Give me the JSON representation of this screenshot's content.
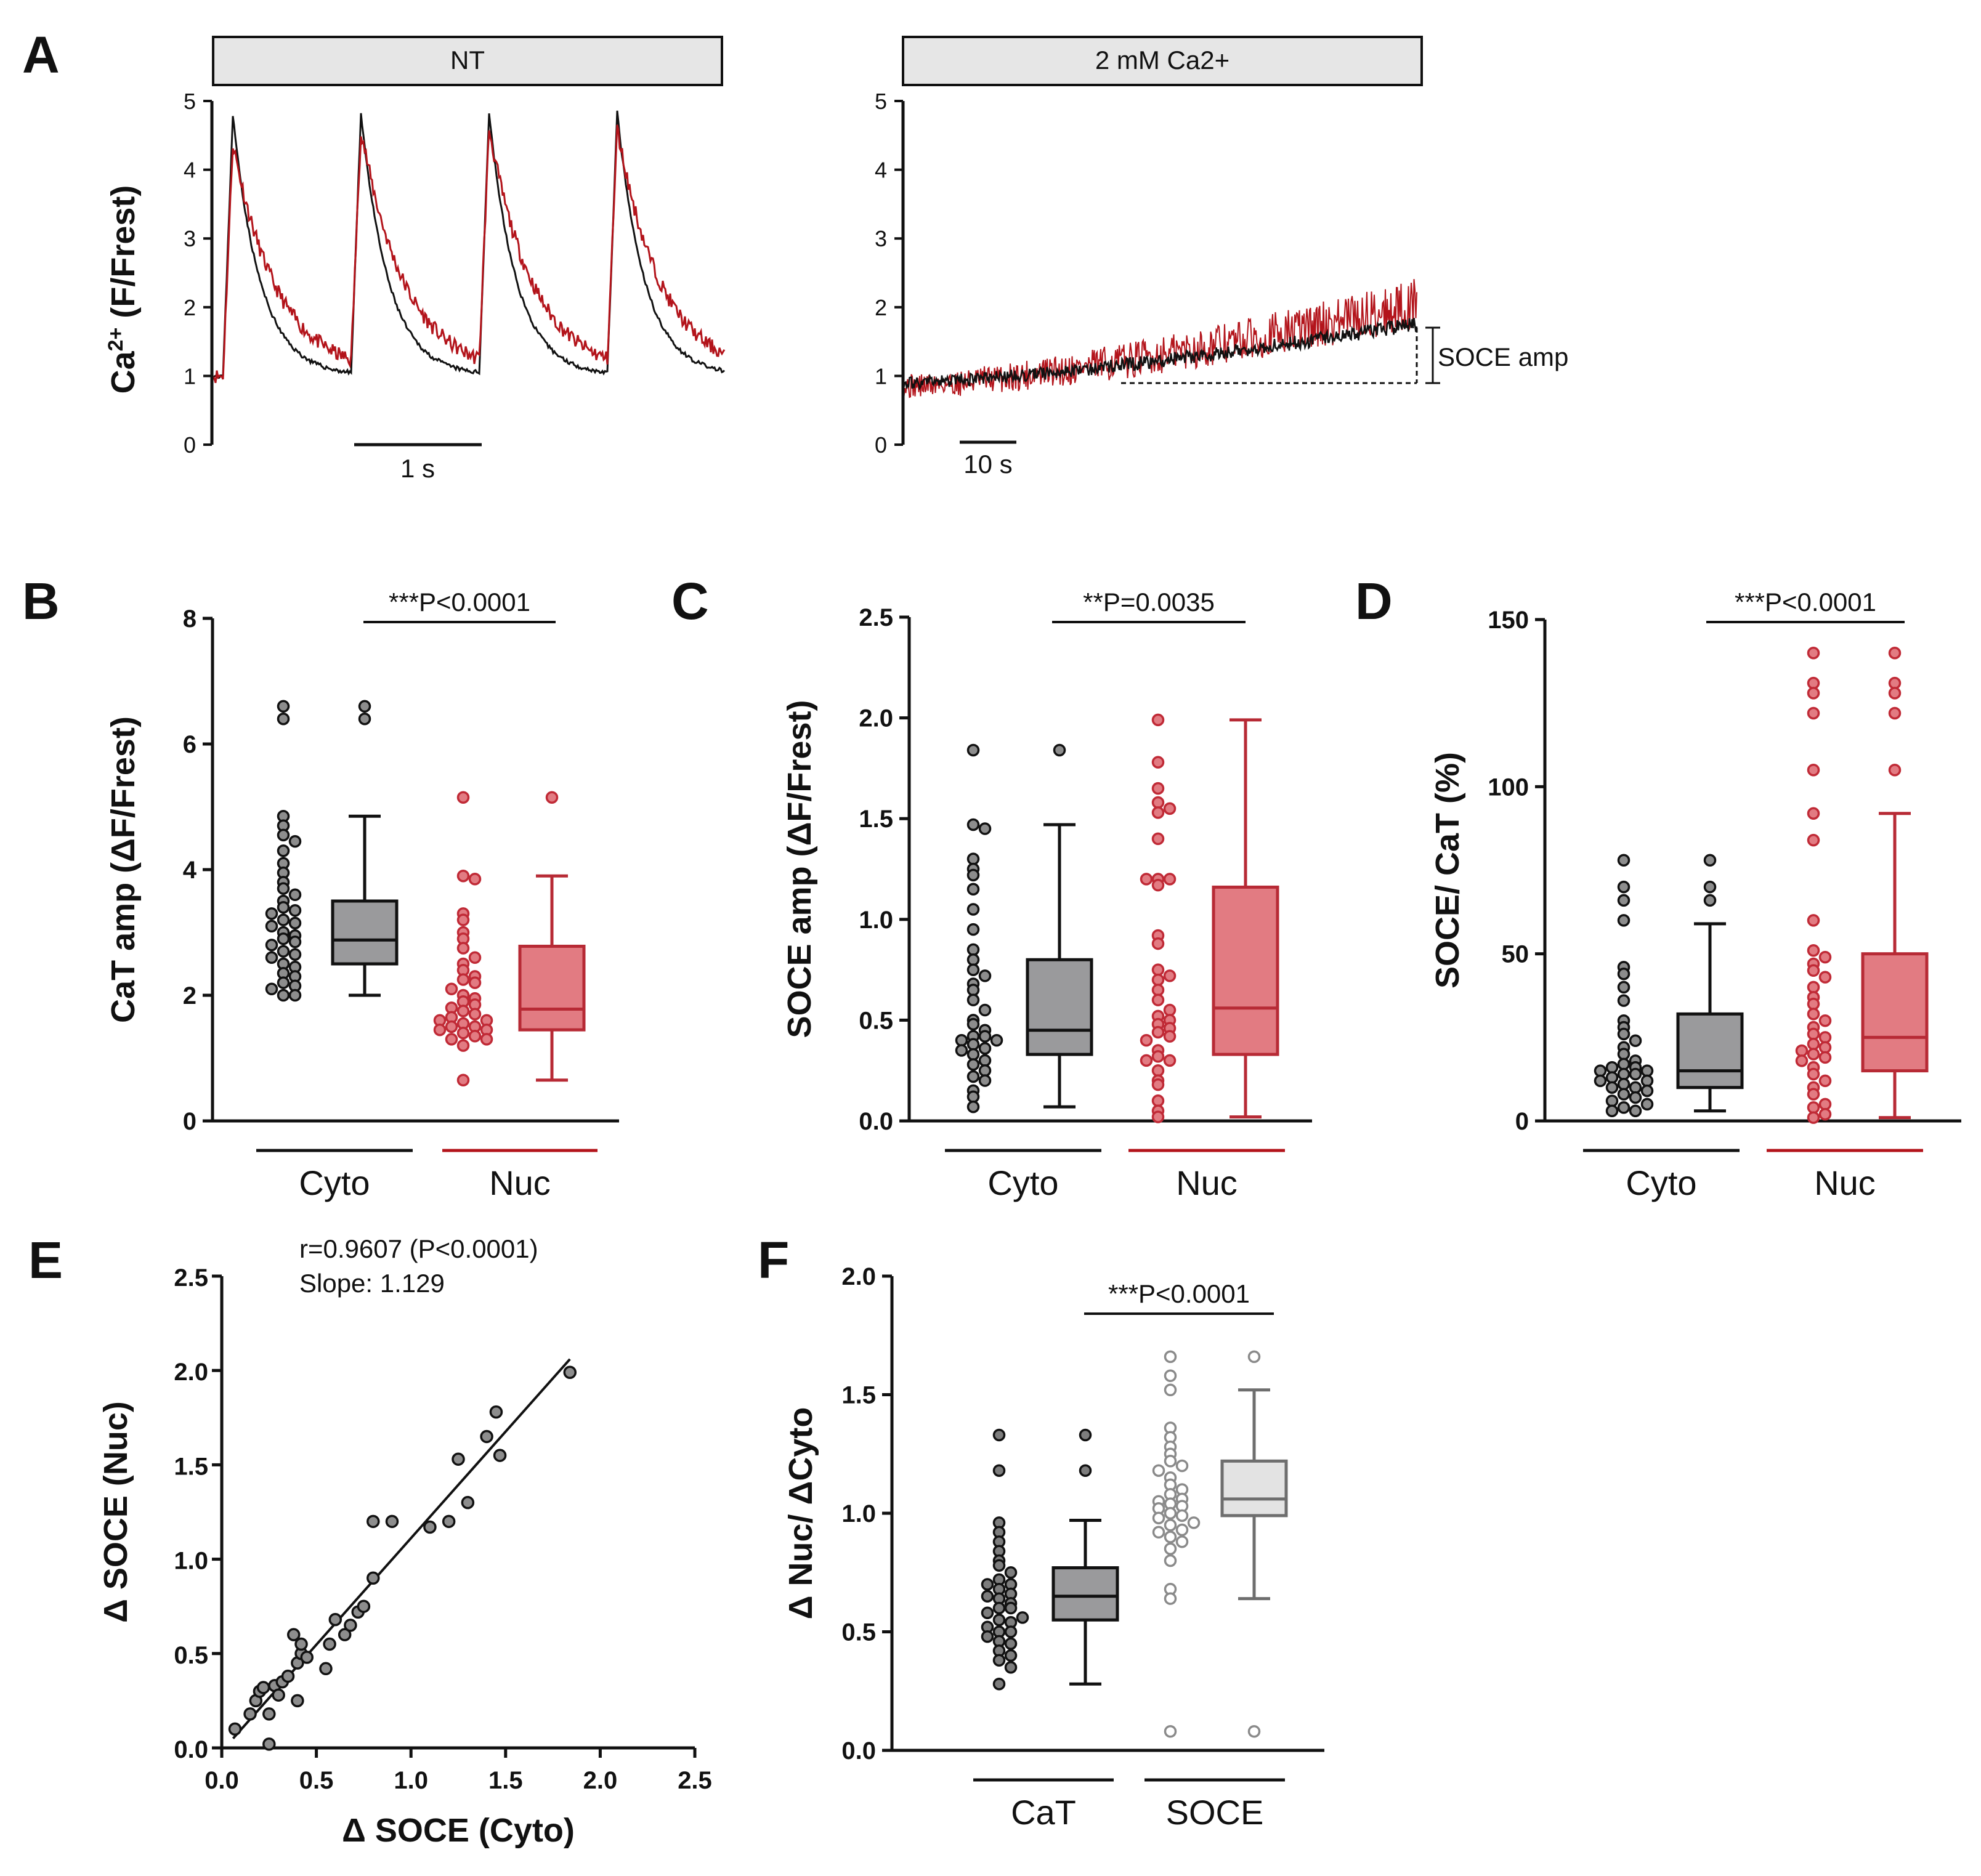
{
  "colors": {
    "black": "#111111",
    "red": "#b3141b",
    "gray_box": "#9a9a9c",
    "red_box": "#e27b82",
    "red_edge": "#b72a35",
    "light_box": "#e3e3e3",
    "gray_point": "#9b9b9b"
  },
  "chart_data": [
    {
      "id": "A_left",
      "panel": "A",
      "type": "line",
      "title": "NT",
      "ylabel": "Ca2+ (F/Frest)",
      "ylim": [
        0,
        5
      ],
      "yticks": [
        "0",
        "1",
        "2",
        "3",
        "4",
        "5"
      ],
      "scalebar": "1 s",
      "series": [
        {
          "name": "Cyto",
          "color": "#111111",
          "peak": 4.8,
          "baseline": 1.0,
          "decay": "fast"
        },
        {
          "name": "Nuc",
          "color": "#b3141b",
          "peak": 4.4,
          "baseline": 1.0,
          "decay": "slow"
        }
      ],
      "transients": 4
    },
    {
      "id": "A_right",
      "panel": "A",
      "type": "line",
      "title": "2 mM Ca2+",
      "ylim": [
        0,
        5
      ],
      "yticks": [
        "0",
        "1",
        "2",
        "3",
        "4",
        "5"
      ],
      "scalebar": "10 s",
      "annotation": "SOCE amp",
      "series": [
        {
          "name": "Nuc",
          "color": "#b3141b",
          "start": 0.85,
          "end": 2.05
        },
        {
          "name": "Cyto",
          "color": "#111111",
          "start": 0.9,
          "end": 1.75
        }
      ]
    },
    {
      "id": "B",
      "panel": "B",
      "type": "box",
      "ylabel": "CaT amp (ΔF/Frest)",
      "ylim": [
        0,
        8
      ],
      "yticks": [
        "0",
        "2",
        "4",
        "6",
        "8"
      ],
      "groups": [
        {
          "label": "Cyto",
          "color": "#111111"
        },
        {
          "label": "Nuc",
          "color": "#b3141b"
        }
      ],
      "significance": "***P<0.0001",
      "cyto_points": [
        6.6,
        6.4,
        4.85,
        4.7,
        4.55,
        4.45,
        4.3,
        4.1,
        3.95,
        3.8,
        3.7,
        3.6,
        3.5,
        3.4,
        3.35,
        3.3,
        3.2,
        3.15,
        3.1,
        3.0,
        2.95,
        2.9,
        2.85,
        2.8,
        2.7,
        2.65,
        2.6,
        2.5,
        2.45,
        2.35,
        2.3,
        2.2,
        2.15,
        2.1,
        2.0,
        2.0
      ],
      "cyto_box": {
        "whisker_low": 2.0,
        "q1": 2.5,
        "median": 2.88,
        "q3": 3.5,
        "whisker_high": 4.85,
        "outliers": [
          6.6,
          6.4
        ]
      },
      "nuc_points": [
        5.15,
        3.9,
        3.85,
        3.3,
        3.2,
        3.0,
        2.9,
        2.75,
        2.6,
        2.5,
        2.4,
        2.3,
        2.25,
        2.2,
        2.1,
        2.0,
        1.95,
        1.9,
        1.85,
        1.8,
        1.75,
        1.7,
        1.65,
        1.6,
        1.6,
        1.55,
        1.5,
        1.5,
        1.45,
        1.45,
        1.4,
        1.35,
        1.3,
        1.3,
        1.2,
        0.65
      ],
      "nuc_box": {
        "whisker_low": 0.65,
        "q1": 1.45,
        "median": 1.78,
        "q3": 2.78,
        "whisker_high": 3.9,
        "outliers": [
          5.15
        ]
      }
    },
    {
      "id": "C",
      "panel": "C",
      "type": "box",
      "ylabel": "SOCE amp (ΔF/Frest)",
      "ylim": [
        0,
        2.5
      ],
      "yticks": [
        "0.0",
        "0.5",
        "1.0",
        "1.5",
        "2.0",
        "2.5"
      ],
      "groups": [
        {
          "label": "Cyto",
          "color": "#111111"
        },
        {
          "label": "Nuc",
          "color": "#b3141b"
        }
      ],
      "significance": "**P=0.0035",
      "cyto_points": [
        1.84,
        1.47,
        1.45,
        1.3,
        1.25,
        1.22,
        1.15,
        1.05,
        0.95,
        0.85,
        0.8,
        0.75,
        0.72,
        0.68,
        0.65,
        0.6,
        0.55,
        0.5,
        0.48,
        0.45,
        0.42,
        0.42,
        0.4,
        0.4,
        0.38,
        0.36,
        0.35,
        0.33,
        0.3,
        0.28,
        0.25,
        0.22,
        0.2,
        0.15,
        0.12,
        0.07
      ],
      "cyto_box": {
        "whisker_low": 0.07,
        "q1": 0.33,
        "median": 0.45,
        "q3": 0.8,
        "whisker_high": 1.47,
        "outliers": [
          1.84
        ]
      },
      "nuc_points": [
        1.99,
        1.78,
        1.65,
        1.58,
        1.55,
        1.53,
        1.4,
        1.2,
        1.2,
        1.2,
        1.17,
        0.92,
        0.88,
        0.75,
        0.72,
        0.7,
        0.65,
        0.6,
        0.55,
        0.52,
        0.5,
        0.48,
        0.46,
        0.44,
        0.42,
        0.4,
        0.35,
        0.32,
        0.3,
        0.3,
        0.25,
        0.2,
        0.18,
        0.1,
        0.05,
        0.02
      ],
      "nuc_box": {
        "whisker_low": 0.02,
        "q1": 0.33,
        "median": 0.56,
        "q3": 1.16,
        "whisker_high": 1.99,
        "outliers": []
      }
    },
    {
      "id": "D",
      "panel": "D",
      "type": "box",
      "ylabel": "SOCE/ CaT (%)",
      "ylim": [
        0,
        150
      ],
      "yticks": [
        "0",
        "50",
        "100",
        "150"
      ],
      "groups": [
        {
          "label": "Cyto",
          "color": "#111111"
        },
        {
          "label": "Nuc",
          "color": "#b3141b"
        }
      ],
      "significance": "***P<0.0001",
      "cyto_points": [
        78,
        70,
        66,
        60,
        46,
        44,
        40,
        36,
        30,
        28,
        26,
        24,
        22,
        20,
        18,
        17,
        16,
        16,
        15,
        15,
        14,
        14,
        13,
        12,
        12,
        11,
        10,
        10,
        9,
        8,
        7,
        6,
        5,
        4,
        3,
        3
      ],
      "cyto_box": {
        "whisker_low": 3,
        "q1": 10,
        "median": 15,
        "q3": 32,
        "whisker_high": 59,
        "outliers": [
          78,
          70,
          66
        ]
      },
      "nuc_points": [
        140,
        131,
        128,
        122,
        105,
        92,
        84,
        60,
        51,
        49,
        47,
        45,
        43,
        40,
        37,
        35,
        32,
        30,
        28,
        26,
        25,
        23,
        22,
        21,
        20,
        19,
        18,
        16,
        14,
        12,
        10,
        8,
        5,
        4,
        2,
        1
      ],
      "nuc_box": {
        "whisker_low": 1,
        "q1": 15,
        "median": 25,
        "q3": 50,
        "whisker_high": 92,
        "outliers": [
          140,
          131,
          128,
          122,
          105
        ]
      }
    },
    {
      "id": "E",
      "panel": "E",
      "type": "scatter",
      "xlabel": "Δ SOCE (Cyto)",
      "ylabel": "Δ SOCE (Nuc)",
      "xlim": [
        0,
        2.5
      ],
      "ylim": [
        0,
        2.5
      ],
      "xticks": [
        "0.0",
        "0.5",
        "1.0",
        "1.5",
        "2.0",
        "2.5"
      ],
      "yticks": [
        "0.0",
        "0.5",
        "1.0",
        "1.5",
        "2.0",
        "2.5"
      ],
      "stat_r": "r=0.9607 (P<0.0001)",
      "stat_slope": "Slope: 1.129",
      "fit": {
        "x0": 0.06,
        "y0": 0.05,
        "x1": 1.84,
        "y1": 2.06
      },
      "points": [
        [
          0.07,
          0.1
        ],
        [
          0.15,
          0.18
        ],
        [
          0.18,
          0.25
        ],
        [
          0.2,
          0.3
        ],
        [
          0.22,
          0.32
        ],
        [
          0.25,
          0.18
        ],
        [
          0.25,
          0.02
        ],
        [
          0.28,
          0.33
        ],
        [
          0.3,
          0.28
        ],
        [
          0.32,
          0.35
        ],
        [
          0.35,
          0.38
        ],
        [
          0.38,
          0.6
        ],
        [
          0.4,
          0.25
        ],
        [
          0.4,
          0.45
        ],
        [
          0.42,
          0.5
        ],
        [
          0.42,
          0.55
        ],
        [
          0.45,
          0.48
        ],
        [
          0.55,
          0.42
        ],
        [
          0.57,
          0.55
        ],
        [
          0.6,
          0.68
        ],
        [
          0.65,
          0.6
        ],
        [
          0.68,
          0.65
        ],
        [
          0.72,
          0.72
        ],
        [
          0.75,
          0.75
        ],
        [
          0.8,
          0.9
        ],
        [
          0.8,
          1.2
        ],
        [
          0.9,
          1.2
        ],
        [
          1.1,
          1.17
        ],
        [
          1.2,
          1.2
        ],
        [
          1.25,
          1.53
        ],
        [
          1.3,
          1.3
        ],
        [
          1.4,
          1.65
        ],
        [
          1.45,
          1.78
        ],
        [
          1.47,
          1.55
        ],
        [
          1.84,
          1.99
        ]
      ]
    },
    {
      "id": "F",
      "panel": "F",
      "type": "box",
      "ylabel": "Δ Nuc/ ΔCyto",
      "ylim": [
        0,
        2.0
      ],
      "yticks": [
        "0.0",
        "0.5",
        "1.0",
        "1.5",
        "2.0"
      ],
      "groups": [
        {
          "label": "CaT",
          "color": "#111111"
        },
        {
          "label": "SOCE",
          "color": "#111111"
        }
      ],
      "significance": "***P<0.0001",
      "cat_points": [
        1.33,
        1.18,
        0.96,
        0.92,
        0.88,
        0.84,
        0.8,
        0.78,
        0.75,
        0.72,
        0.7,
        0.7,
        0.68,
        0.66,
        0.65,
        0.64,
        0.62,
        0.6,
        0.6,
        0.58,
        0.56,
        0.55,
        0.54,
        0.52,
        0.5,
        0.5,
        0.48,
        0.46,
        0.45,
        0.42,
        0.4,
        0.38,
        0.35,
        0.28
      ],
      "cat_box": {
        "whisker_low": 0.28,
        "q1": 0.55,
        "median": 0.65,
        "q3": 0.77,
        "whisker_high": 0.97,
        "outliers": [
          1.33,
          1.18
        ]
      },
      "soce_points": [
        1.66,
        1.58,
        1.52,
        1.36,
        1.32,
        1.28,
        1.25,
        1.22,
        1.2,
        1.18,
        1.15,
        1.12,
        1.1,
        1.08,
        1.06,
        1.05,
        1.04,
        1.03,
        1.02,
        1.0,
        0.99,
        0.98,
        0.96,
        0.95,
        0.93,
        0.92,
        0.9,
        0.88,
        0.85,
        0.8,
        0.68,
        0.64,
        0.08
      ],
      "soce_box": {
        "whisker_low": 0.64,
        "q1": 0.99,
        "median": 1.06,
        "q3": 1.22,
        "whisker_high": 1.52,
        "outliers": [
          1.66,
          0.08
        ]
      }
    }
  ]
}
